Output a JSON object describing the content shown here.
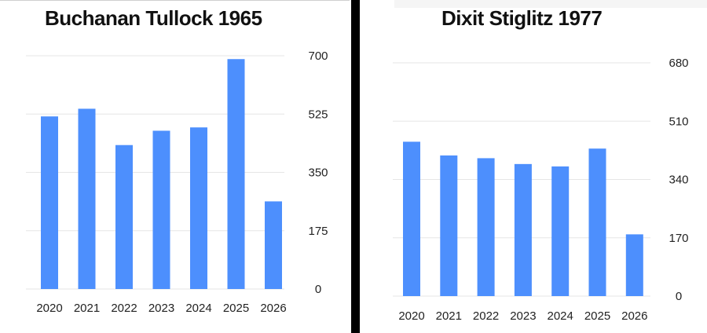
{
  "chart_data": [
    {
      "type": "bar",
      "title": "Buchanan Tullock 1965",
      "categories": [
        "2020",
        "2021",
        "2022",
        "2023",
        "2024",
        "2025",
        "2026"
      ],
      "values": [
        518,
        541,
        432,
        475,
        485,
        690,
        263
      ],
      "ylim": [
        0,
        700
      ],
      "yticks": [
        "0",
        "175",
        "350",
        "525",
        "700"
      ],
      "yaxis_position": "right",
      "grid": true,
      "bar_color": "#4d8ffd"
    },
    {
      "type": "bar",
      "title": "Dixit Stiglitz 1977",
      "categories": [
        "2020",
        "2021",
        "2022",
        "2023",
        "2024",
        "2025",
        "2026"
      ],
      "values": [
        450,
        410,
        402,
        385,
        378,
        430,
        180
      ],
      "ylim": [
        0,
        680
      ],
      "yticks": [
        "0",
        "170",
        "340",
        "510",
        "680"
      ],
      "yaxis_position": "right",
      "grid": true,
      "bar_color": "#4d8ffd"
    }
  ]
}
